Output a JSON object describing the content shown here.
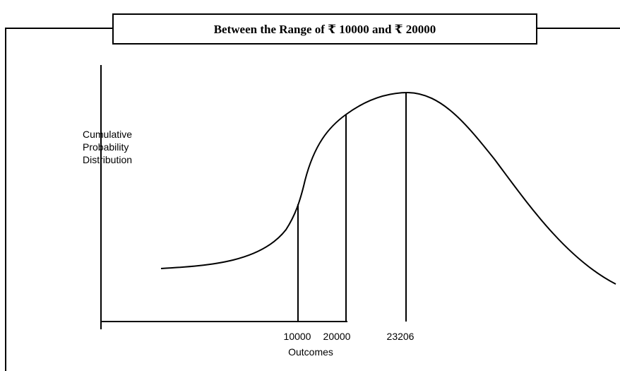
{
  "title": "Between the Range of ₹ 10000 and ₹ 20000",
  "y_label": [
    "Cumulative",
    "Probability",
    "Distribution"
  ],
  "x_markers": [
    "10000",
    "20000",
    "23206"
  ],
  "x_label": "Outcomes"
}
